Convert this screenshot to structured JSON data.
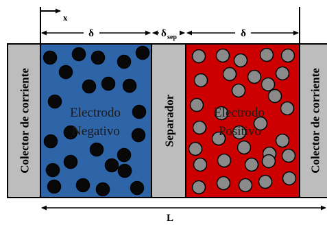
{
  "labels": {
    "collector_left": "Colector de corriente",
    "collector_right": "Colector de corriente",
    "separator": "Separador",
    "negative_line1": "Electrodo",
    "negative_line2": "Negativo",
    "positive_line1": "Electrodo",
    "positive_line2": "Positivo",
    "x_axis": "x",
    "delta_left": "δ",
    "delta_sep": "δ",
    "delta_sep_sub": "sep",
    "delta_right": "δ",
    "length": "L"
  },
  "colors": {
    "collector": "#bdbdbd",
    "separator": "#bdbdbd",
    "negative_electrode": "#2e64a8",
    "positive_electrode": "#cc0000",
    "negative_particle": "#080808",
    "positive_particle": "#8a8a8a",
    "electrode_text": "#1a1a1a",
    "outline": "#000000"
  },
  "particles": {
    "negative_count": 30,
    "positive_count": 40
  }
}
